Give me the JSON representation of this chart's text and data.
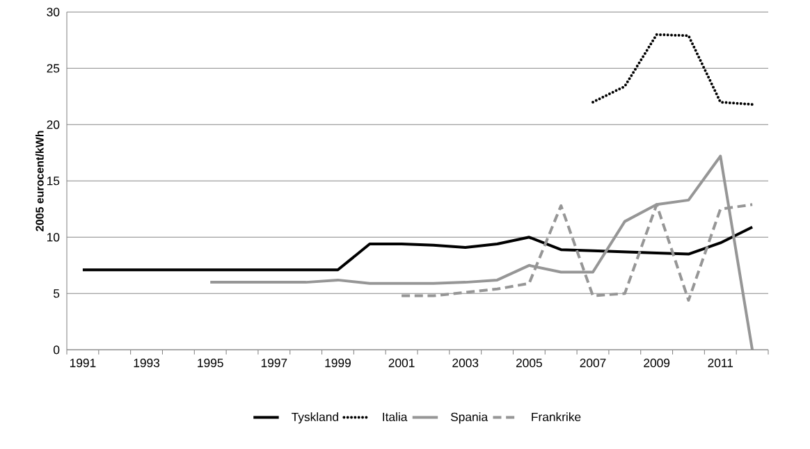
{
  "chart_data": {
    "type": "line",
    "ylabel": "2005 eurocent/kWh",
    "categories": [
      "1991",
      null,
      "1993",
      null,
      "1995",
      null,
      "1997",
      null,
      "1999",
      null,
      "2001",
      null,
      "2003",
      null,
      "2005",
      null,
      "2007",
      null,
      "2009",
      null,
      "2011",
      null
    ],
    "series": [
      {
        "name": "Tyskland",
        "color": "#000000",
        "line_style": "solid",
        "values": [
          7.1,
          7.1,
          7.1,
          7.1,
          7.1,
          7.1,
          7.1,
          7.1,
          7.1,
          9.4,
          9.4,
          9.3,
          9.1,
          9.4,
          10.0,
          8.9,
          8.8,
          8.7,
          8.6,
          8.5,
          9.5,
          10.9
        ]
      },
      {
        "name": "Italia",
        "color": "#000000",
        "line_style": "dotted",
        "values": [
          null,
          null,
          null,
          null,
          null,
          null,
          null,
          null,
          null,
          null,
          null,
          null,
          null,
          null,
          null,
          null,
          22.0,
          23.4,
          28.0,
          27.9,
          22.0,
          21.8
        ]
      },
      {
        "name": "Spania",
        "color": "#969696",
        "line_style": "solid",
        "values": [
          null,
          null,
          null,
          null,
          6.0,
          6.0,
          6.0,
          6.0,
          6.2,
          5.9,
          5.9,
          5.9,
          6.0,
          6.2,
          7.5,
          6.9,
          6.9,
          11.4,
          12.9,
          13.3,
          17.2,
          0
        ]
      },
      {
        "name": "Frankrike",
        "color": "#969696",
        "line_style": "dashed",
        "values": [
          null,
          null,
          null,
          null,
          null,
          null,
          null,
          null,
          null,
          null,
          4.8,
          4.8,
          5.1,
          5.4,
          5.9,
          12.8,
          4.8,
          5.0,
          12.9,
          4.4,
          12.5,
          12.9
        ]
      }
    ],
    "ylim": [
      0,
      30
    ],
    "yticks": [
      0,
      5,
      10,
      15,
      20,
      25,
      30
    ],
    "grid": "y",
    "legend": "bottom"
  }
}
